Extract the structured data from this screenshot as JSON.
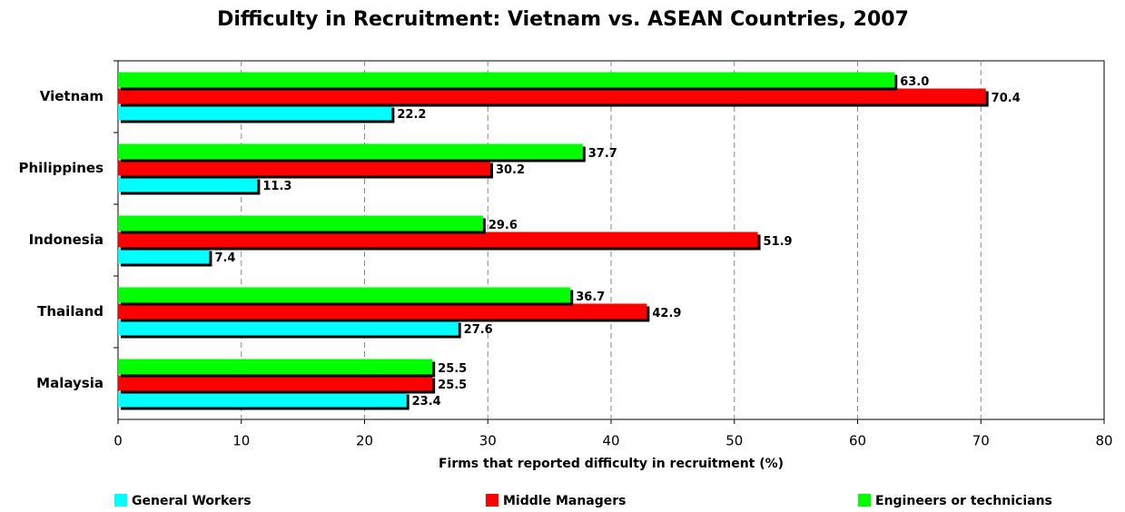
{
  "chart_data": {
    "type": "barh",
    "title": "Difficulty in Recruitment: Vietnam vs. ASEAN Countries, 2007",
    "x_label": "Firms that reported difficulty in recruitment (%)",
    "categories": [
      "Vietnam",
      "Philippines",
      "Indonesia",
      "Thailand",
      "Malaysia"
    ],
    "series": [
      {
        "name": "General Workers",
        "color": "#00ffff",
        "values": [
          22.2,
          11.3,
          7.4,
          27.6,
          23.4
        ],
        "value_labels": [
          "22.2",
          "11.3",
          "7.4",
          "27.6",
          "23.4"
        ]
      },
      {
        "name": "Middle Managers",
        "color": "#ff0000",
        "values": [
          70.4,
          30.2,
          51.9,
          42.9,
          25.5
        ],
        "value_labels": [
          "70.4",
          "30.2",
          "51.9",
          "42.9",
          "25.5"
        ]
      },
      {
        "name": "Engineers or technicians",
        "color": "#00ff00",
        "values": [
          63.0,
          37.7,
          29.6,
          36.7,
          25.5
        ],
        "value_labels": [
          "63.0",
          "37.7",
          "29.6",
          "36.7",
          "25.5"
        ]
      }
    ],
    "xlim": [
      0,
      80
    ],
    "xticks": [
      0,
      10,
      20,
      30,
      40,
      50,
      60,
      70,
      80
    ],
    "grid": true
  }
}
